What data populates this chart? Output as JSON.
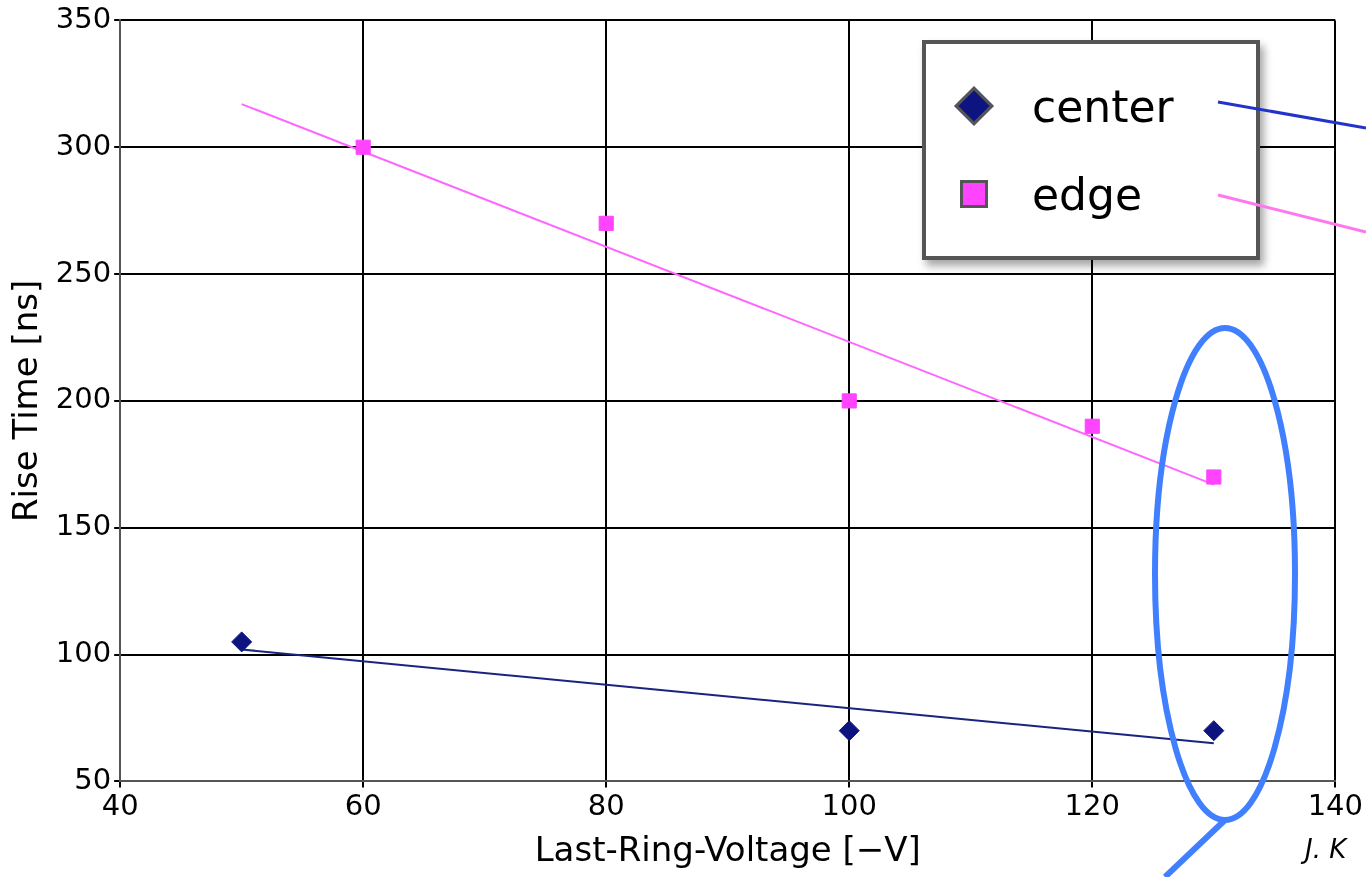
{
  "chart_data": {
    "type": "scatter",
    "xlabel": "Last-Ring-Voltage [−V]",
    "ylabel": "Rise Time [ns]",
    "xlim": [
      40,
      140
    ],
    "xticks": [
      40,
      60,
      80,
      100,
      120,
      140
    ],
    "ylim": [
      50,
      350
    ],
    "yticks": [
      50,
      100,
      150,
      200,
      250,
      300,
      350
    ],
    "grid": true,
    "legend": "top right",
    "series": [
      {
        "name": "center",
        "type": "scatter",
        "color": "#0d1480",
        "marker": "diamond",
        "x": [
          50,
          100,
          130
        ],
        "values": [
          105,
          70,
          70
        ]
      },
      {
        "name": "edge",
        "type": "scatter",
        "color": "#ff44ff",
        "marker": "square",
        "x": [
          60,
          80,
          100,
          120,
          130
        ],
        "values": [
          300,
          270,
          200,
          190,
          170
        ]
      },
      {
        "type": "line",
        "color": "#ff66ff",
        "marker": "none",
        "x": [
          50,
          130
        ],
        "values": [
          317,
          167
        ]
      },
      {
        "type": "line",
        "color": "#1a237e",
        "marker": "none",
        "x": [
          50,
          130
        ],
        "values": [
          102,
          65
        ]
      }
    ],
    "annotations": [
      "J. K"
    ]
  }
}
